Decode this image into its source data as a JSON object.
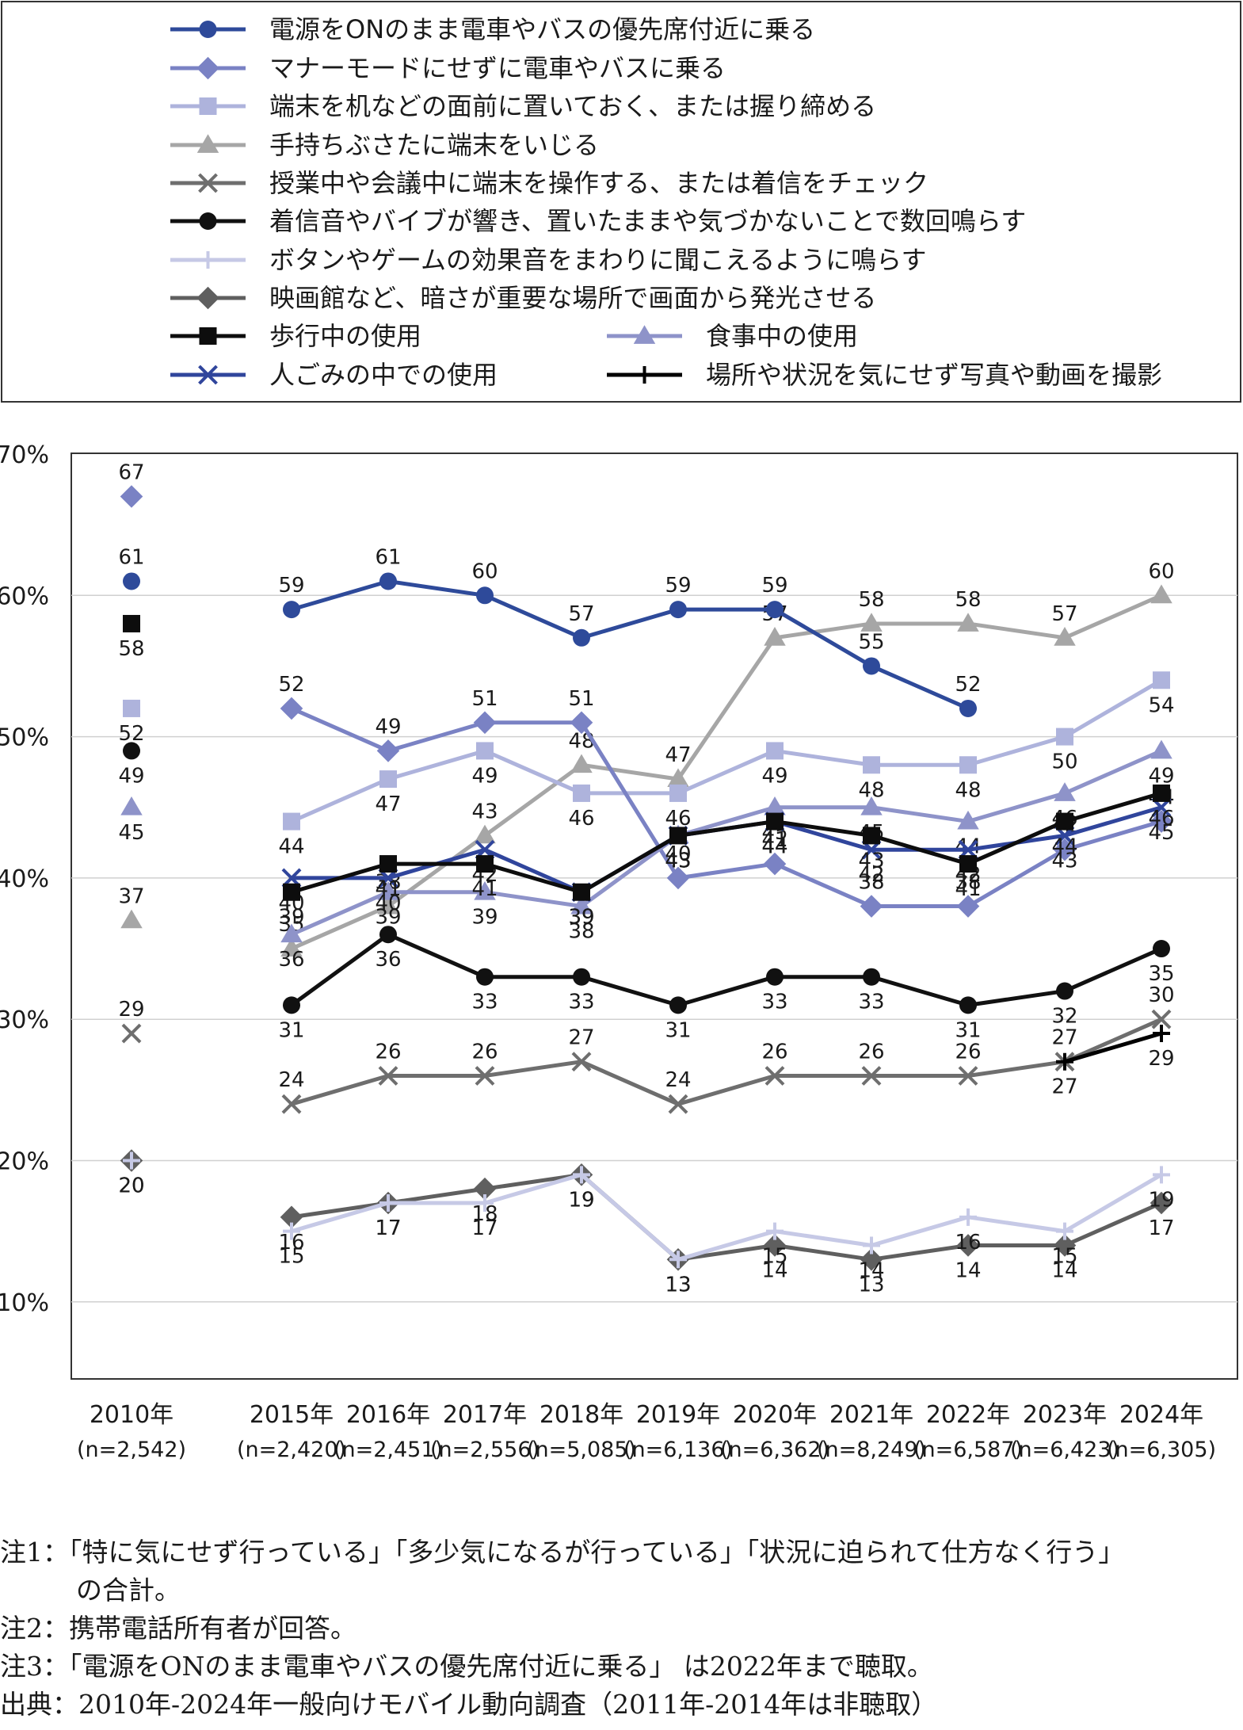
{
  "chart_data": {
    "type": "line",
    "ylim": [
      5,
      70
    ],
    "y_ticks": [
      "70%",
      "60%",
      "50%",
      "40%",
      "30%",
      "20%",
      "10%"
    ],
    "y_tick_values": [
      70,
      60,
      50,
      40,
      30,
      20,
      10
    ],
    "grid": true,
    "legend_position": "top",
    "categories": [
      {
        "year": "2010年",
        "n": "(n=2,542)"
      },
      {
        "year": "2015年",
        "n": "(n=2,420)"
      },
      {
        "year": "2016年",
        "n": "(n=2,451)"
      },
      {
        "year": "2017年",
        "n": "(n=2,556)"
      },
      {
        "year": "2018年",
        "n": "(n=5,085)"
      },
      {
        "year": "2019年",
        "n": "(n=6,136)"
      },
      {
        "year": "2020年",
        "n": "(n=6,362)"
      },
      {
        "year": "2021年",
        "n": "(n=8,249)"
      },
      {
        "year": "2022年",
        "n": "(n=6,587)"
      },
      {
        "year": "2023年",
        "n": "(n=6,423)"
      },
      {
        "year": "2024年",
        "n": "(n=6,305)"
      }
    ],
    "series": [
      {
        "name": "電源をONのまま電車やバスの優先席付近に乗る",
        "color": "#2e4a9a",
        "marker": "circle",
        "dashed": false,
        "values": [
          61,
          59,
          61,
          60,
          57,
          59,
          59,
          55,
          52,
          null,
          null
        ],
        "labels": [
          "61",
          "59",
          "61",
          "60",
          "57",
          "59",
          "59",
          "55",
          "52",
          null,
          null
        ]
      },
      {
        "name": "マナーモードにせずに電車やバスに乗る",
        "color": "#7a82c4",
        "marker": "diamond",
        "dashed": false,
        "values": [
          67,
          52,
          49,
          51,
          51,
          40,
          41,
          38,
          38,
          42,
          44
        ],
        "labels": [
          "67",
          "52",
          "49",
          "51",
          "51",
          "40",
          "41",
          "38",
          "38",
          "42",
          "44"
        ]
      },
      {
        "name": "端末を机などの面前に置いておく、または握り締める",
        "color": "#aeb3dc",
        "marker": "square",
        "dashed": false,
        "values": [
          52,
          44,
          47,
          49,
          46,
          46,
          49,
          48,
          48,
          50,
          54
        ],
        "labels": [
          "52",
          "44",
          "47",
          "49",
          "46",
          "46",
          "49",
          "48",
          "48",
          "50",
          "54"
        ]
      },
      {
        "name": "手持ちぶさたに端末をいじる",
        "color": "#a6a6a6",
        "marker": "triangle",
        "dashed": false,
        "values": [
          37,
          35,
          38,
          43,
          48,
          47,
          57,
          58,
          58,
          57,
          60
        ],
        "labels": [
          "37",
          "35",
          "38",
          "43",
          "48",
          "47",
          "57",
          "58",
          "58",
          "57",
          "60"
        ]
      },
      {
        "name": "授業中や会議中に端末を操作する、または着信をチェック",
        "color": "#6e6e6e",
        "marker": "x",
        "dashed": false,
        "values": [
          29,
          24,
          26,
          26,
          27,
          24,
          26,
          26,
          26,
          27,
          30
        ],
        "labels": [
          "29",
          "24",
          "26",
          "26",
          "27",
          "24",
          "26",
          "26",
          "26",
          "27",
          "30"
        ]
      },
      {
        "name": "着信音やバイブが響き、置いたままや気づかないことで数回鳴らす",
        "color": "#111111",
        "marker": "circle",
        "dashed": false,
        "values": [
          49,
          31,
          36,
          33,
          33,
          31,
          33,
          33,
          31,
          32,
          35
        ],
        "labels": [
          "49",
          "31",
          "36",
          "33",
          "33",
          "31",
          "33",
          "33",
          "31",
          "32",
          "35"
        ]
      },
      {
        "name": "ボタンやゲームの効果音をまわりに聞こえるように鳴らす",
        "color": "#c6c9e6",
        "marker": "plus",
        "dashed": false,
        "values": [
          20,
          15,
          17,
          17,
          19,
          13,
          15,
          14,
          16,
          15,
          19
        ],
        "labels": [
          "20",
          "15",
          "17",
          "17",
          "19",
          "13",
          "15",
          "14",
          "16",
          "15",
          "19"
        ]
      },
      {
        "name": "映画館など、暗さが重要な場所で画面から発光させる",
        "color": "#5f5f5f",
        "marker": "diamond",
        "dashed": false,
        "values": [
          20,
          16,
          17,
          18,
          19,
          13,
          14,
          13,
          14,
          14,
          17
        ],
        "labels": [
          "20",
          "16",
          "17",
          "18",
          "19",
          "13",
          "14",
          "13",
          "14",
          "14",
          "17"
        ]
      },
      {
        "name": "歩行中の使用",
        "color": "#0d0d0d",
        "marker": "square",
        "dashed": false,
        "values": [
          58,
          39,
          41,
          41,
          39,
          43,
          44,
          43,
          41,
          44,
          46
        ],
        "labels": [
          "58",
          "39",
          "41",
          "41",
          "39",
          "43",
          "44",
          "43",
          "41",
          "44",
          "46"
        ]
      },
      {
        "name": "食事中の使用",
        "color": "#8e93c9",
        "marker": "triangle",
        "dashed": false,
        "values": [
          45,
          36,
          39,
          39,
          38,
          43,
          45,
          45,
          44,
          46,
          49
        ],
        "labels": [
          "45",
          "36",
          "39",
          "39",
          "38",
          "43",
          "45",
          "45",
          "44",
          "46",
          "49"
        ]
      },
      {
        "name": "人ごみの中での使用",
        "color": "#30459c",
        "marker": "x",
        "dashed": false,
        "values": [
          null,
          40,
          40,
          42,
          39,
          43,
          44,
          42,
          42,
          43,
          45
        ],
        "labels": [
          null,
          "40",
          "40",
          "42",
          "39",
          "43",
          "44",
          "42",
          "42",
          "43",
          "45"
        ]
      },
      {
        "name": "場所や状況を気にせず写真や動画を撮影",
        "color": "#000000",
        "marker": "plus",
        "dashed": false,
        "values": [
          null,
          null,
          null,
          null,
          null,
          null,
          null,
          null,
          null,
          27,
          29
        ],
        "labels": [
          null,
          null,
          null,
          null,
          null,
          null,
          null,
          null,
          null,
          "27",
          "29"
        ]
      }
    ]
  },
  "notes": [
    "注1：「特に気にせず行っている」「多少気になるが行っている」「状況に迫られて仕方なく行う」",
    "の合計。",
    "注2：携帯電話所有者が回答。",
    "注3：「電源をONのまま電車やバスの優先席付近に乗る」 は2022年まで聴取。",
    "出典：2010年-2024年一般向けモバイル動向調査（2011年-2014年は非聴取）"
  ]
}
